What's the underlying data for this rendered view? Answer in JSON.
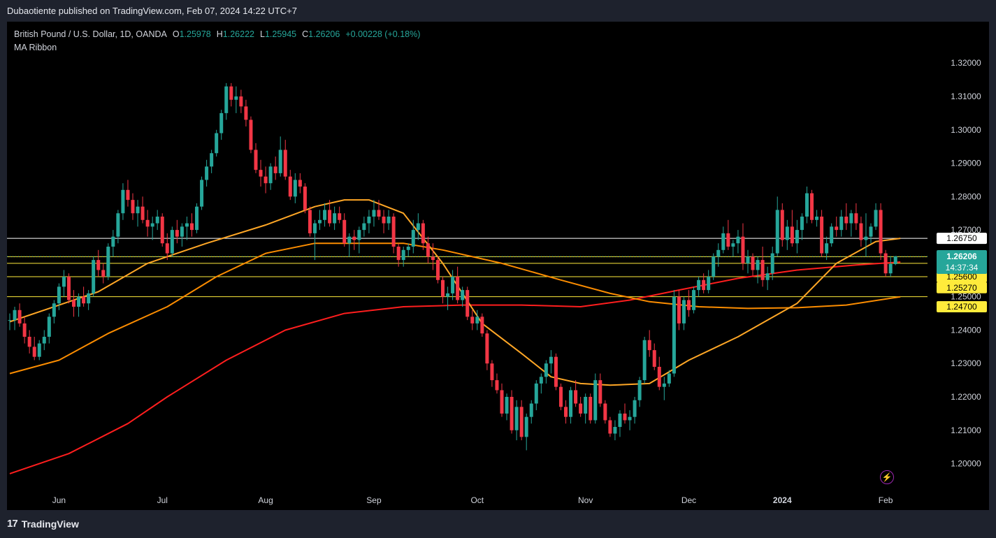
{
  "header": {
    "publish_line": "Dubaotiente published on TradingView.com, Feb 07, 2024 14:22 UTC+7"
  },
  "legend": {
    "symbol": "British Pound / U.S. Dollar, 1D, OANDA",
    "open_label": "O",
    "open": "1.25978",
    "high_label": "H",
    "high": "1.26222",
    "low_label": "L",
    "low": "1.25945",
    "close_label": "C",
    "close": "1.26206",
    "change": "+0.00228 (+0.18%)",
    "indicator": "MA Ribbon"
  },
  "footer": {
    "logo": "17",
    "brand": "TradingView"
  },
  "colors": {
    "up": "#26a69a",
    "down": "#f23645",
    "ma_fast": "#ffa726",
    "ma_mid": "#fb8c00",
    "ma_slow": "#ff1e1e",
    "hline_white": "#ffffff",
    "hline_yellow": "#ffeb3b",
    "background": "#000000"
  },
  "icons": {
    "alert": "lightning-icon"
  },
  "chart_data": {
    "type": "candlestick",
    "title": "British Pound / U.S. Dollar, 1D, OANDA",
    "ylim": [
      1.193,
      1.3324
    ],
    "y_ticks": [
      "1.32000",
      "1.31000",
      "1.30000",
      "1.29000",
      "1.28000",
      "1.27000",
      "1.26000",
      "1.25000",
      "1.24000",
      "1.23000",
      "1.22000",
      "1.21000",
      "1.20000"
    ],
    "x_ticks": [
      {
        "label": "Jun",
        "index": 10
      },
      {
        "label": "Jul",
        "index": 31
      },
      {
        "label": "Aug",
        "index": 52
      },
      {
        "label": "Sep",
        "index": 74
      },
      {
        "label": "Oct",
        "index": 95
      },
      {
        "label": "Nov",
        "index": 117
      },
      {
        "label": "Dec",
        "index": 138
      },
      {
        "label": "2024",
        "index": 157,
        "bold": true
      },
      {
        "label": "Feb",
        "index": 178
      }
    ],
    "last_index": 181,
    "candles": [
      [
        1.243,
        1.245,
        1.24,
        1.243
      ],
      [
        1.243,
        1.247,
        1.24,
        1.246
      ],
      [
        1.246,
        1.248,
        1.241,
        1.242
      ],
      [
        1.242,
        1.244,
        1.236,
        1.238
      ],
      [
        1.238,
        1.24,
        1.233,
        1.235
      ],
      [
        1.235,
        1.238,
        1.231,
        1.232
      ],
      [
        1.232,
        1.237,
        1.231,
        1.236
      ],
      [
        1.236,
        1.24,
        1.234,
        1.238
      ],
      [
        1.238,
        1.245,
        1.236,
        1.244
      ],
      [
        1.244,
        1.249,
        1.242,
        1.248
      ],
      [
        1.248,
        1.254,
        1.246,
        1.253
      ],
      [
        1.253,
        1.258,
        1.25,
        1.256
      ],
      [
        1.256,
        1.257,
        1.248,
        1.249
      ],
      [
        1.249,
        1.252,
        1.244,
        1.247
      ],
      [
        1.247,
        1.251,
        1.244,
        1.25
      ],
      [
        1.25,
        1.253,
        1.247,
        1.248
      ],
      [
        1.248,
        1.252,
        1.246,
        1.251
      ],
      [
        1.251,
        1.262,
        1.25,
        1.261
      ],
      [
        1.261,
        1.264,
        1.256,
        1.258
      ],
      [
        1.258,
        1.26,
        1.254,
        1.256
      ],
      [
        1.256,
        1.266,
        1.255,
        1.265
      ],
      [
        1.265,
        1.27,
        1.262,
        1.268
      ],
      [
        1.268,
        1.276,
        1.266,
        1.275
      ],
      [
        1.275,
        1.284,
        1.273,
        1.282
      ],
      [
        1.282,
        1.285,
        1.277,
        1.279
      ],
      [
        1.279,
        1.281,
        1.273,
        1.275
      ],
      [
        1.275,
        1.279,
        1.271,
        1.277
      ],
      [
        1.277,
        1.28,
        1.272,
        1.273
      ],
      [
        1.273,
        1.276,
        1.268,
        1.271
      ],
      [
        1.271,
        1.274,
        1.267,
        1.272
      ],
      [
        1.272,
        1.276,
        1.27,
        1.274
      ],
      [
        1.274,
        1.275,
        1.265,
        1.266
      ],
      [
        1.266,
        1.269,
        1.261,
        1.263
      ],
      [
        1.263,
        1.271,
        1.262,
        1.27
      ],
      [
        1.27,
        1.273,
        1.266,
        1.268
      ],
      [
        1.268,
        1.272,
        1.265,
        1.271
      ],
      [
        1.271,
        1.274,
        1.267,
        1.272
      ],
      [
        1.272,
        1.275,
        1.268,
        1.27
      ],
      [
        1.27,
        1.278,
        1.269,
        1.277
      ],
      [
        1.277,
        1.286,
        1.276,
        1.285
      ],
      [
        1.285,
        1.291,
        1.283,
        1.289
      ],
      [
        1.289,
        1.294,
        1.287,
        1.293
      ],
      [
        1.293,
        1.3,
        1.292,
        1.299
      ],
      [
        1.299,
        1.306,
        1.297,
        1.305
      ],
      [
        1.305,
        1.314,
        1.303,
        1.313
      ],
      [
        1.313,
        1.314,
        1.307,
        1.309
      ],
      [
        1.309,
        1.313,
        1.305,
        1.31
      ],
      [
        1.31,
        1.312,
        1.305,
        1.307
      ],
      [
        1.307,
        1.309,
        1.301,
        1.303
      ],
      [
        1.303,
        1.304,
        1.293,
        1.294
      ],
      [
        1.294,
        1.296,
        1.287,
        1.288
      ],
      [
        1.288,
        1.291,
        1.283,
        1.286
      ],
      [
        1.286,
        1.289,
        1.281,
        1.284
      ],
      [
        1.284,
        1.29,
        1.282,
        1.289
      ],
      [
        1.289,
        1.292,
        1.285,
        1.287
      ],
      [
        1.287,
        1.298,
        1.286,
        1.294
      ],
      [
        1.294,
        1.297,
        1.285,
        1.286
      ],
      [
        1.286,
        1.288,
        1.279,
        1.28
      ],
      [
        1.28,
        1.287,
        1.278,
        1.285
      ],
      [
        1.285,
        1.287,
        1.281,
        1.283
      ],
      [
        1.283,
        1.284,
        1.275,
        1.276
      ],
      [
        1.276,
        1.277,
        1.268,
        1.269
      ],
      [
        1.269,
        1.273,
        1.261,
        1.272
      ],
      [
        1.272,
        1.276,
        1.27,
        1.273
      ],
      [
        1.273,
        1.278,
        1.271,
        1.276
      ],
      [
        1.276,
        1.279,
        1.271,
        1.272
      ],
      [
        1.272,
        1.277,
        1.27,
        1.275
      ],
      [
        1.275,
        1.277,
        1.272,
        1.273
      ],
      [
        1.273,
        1.275,
        1.265,
        1.266
      ],
      [
        1.266,
        1.269,
        1.262,
        1.268
      ],
      [
        1.268,
        1.27,
        1.264,
        1.267
      ],
      [
        1.267,
        1.271,
        1.263,
        1.27
      ],
      [
        1.27,
        1.274,
        1.268,
        1.272
      ],
      [
        1.272,
        1.276,
        1.269,
        1.274
      ],
      [
        1.274,
        1.279,
        1.271,
        1.276
      ],
      [
        1.276,
        1.279,
        1.273,
        1.274
      ],
      [
        1.274,
        1.276,
        1.269,
        1.272
      ],
      [
        1.272,
        1.276,
        1.27,
        1.274
      ],
      [
        1.274,
        1.275,
        1.263,
        1.265
      ],
      [
        1.265,
        1.266,
        1.259,
        1.261
      ],
      [
        1.261,
        1.265,
        1.259,
        1.264
      ],
      [
        1.264,
        1.266,
        1.262,
        1.265
      ],
      [
        1.265,
        1.273,
        1.263,
        1.27
      ],
      [
        1.27,
        1.275,
        1.267,
        1.272
      ],
      [
        1.272,
        1.273,
        1.264,
        1.266
      ],
      [
        1.266,
        1.268,
        1.26,
        1.262
      ],
      [
        1.262,
        1.266,
        1.258,
        1.261
      ],
      [
        1.261,
        1.262,
        1.254,
        1.255
      ],
      [
        1.255,
        1.256,
        1.248,
        1.25
      ],
      [
        1.25,
        1.253,
        1.246,
        1.251
      ],
      [
        1.251,
        1.258,
        1.249,
        1.256
      ],
      [
        1.256,
        1.259,
        1.248,
        1.249
      ],
      [
        1.249,
        1.253,
        1.247,
        1.252
      ],
      [
        1.252,
        1.253,
        1.243,
        1.244
      ],
      [
        1.244,
        1.246,
        1.24,
        1.242
      ],
      [
        1.242,
        1.246,
        1.24,
        1.244
      ],
      [
        1.244,
        1.245,
        1.238,
        1.239
      ],
      [
        1.239,
        1.24,
        1.228,
        1.23
      ],
      [
        1.23,
        1.231,
        1.223,
        1.225
      ],
      [
        1.225,
        1.227,
        1.221,
        1.222
      ],
      [
        1.222,
        1.224,
        1.214,
        1.215
      ],
      [
        1.215,
        1.221,
        1.213,
        1.22
      ],
      [
        1.22,
        1.222,
        1.209,
        1.21
      ],
      [
        1.21,
        1.219,
        1.207,
        1.217
      ],
      [
        1.217,
        1.219,
        1.207,
        1.208
      ],
      [
        1.208,
        1.215,
        1.204,
        1.214
      ],
      [
        1.214,
        1.219,
        1.212,
        1.218
      ],
      [
        1.218,
        1.225,
        1.216,
        1.224
      ],
      [
        1.224,
        1.227,
        1.221,
        1.226
      ],
      [
        1.226,
        1.231,
        1.224,
        1.23
      ],
      [
        1.23,
        1.234,
        1.227,
        1.232
      ],
      [
        1.232,
        1.233,
        1.222,
        1.223
      ],
      [
        1.223,
        1.224,
        1.216,
        1.217
      ],
      [
        1.217,
        1.219,
        1.212,
        1.214
      ],
      [
        1.214,
        1.223,
        1.212,
        1.222
      ],
      [
        1.222,
        1.225,
        1.217,
        1.218
      ],
      [
        1.218,
        1.22,
        1.214,
        1.215
      ],
      [
        1.215,
        1.221,
        1.212,
        1.22
      ],
      [
        1.22,
        1.221,
        1.212,
        1.213
      ],
      [
        1.213,
        1.227,
        1.212,
        1.225
      ],
      [
        1.225,
        1.227,
        1.217,
        1.218
      ],
      [
        1.218,
        1.219,
        1.212,
        1.213
      ],
      [
        1.213,
        1.214,
        1.208,
        1.209
      ],
      [
        1.209,
        1.213,
        1.207,
        1.211
      ],
      [
        1.211,
        1.216,
        1.208,
        1.215
      ],
      [
        1.215,
        1.218,
        1.212,
        1.213
      ],
      [
        1.213,
        1.216,
        1.21,
        1.214
      ],
      [
        1.214,
        1.22,
        1.212,
        1.219
      ],
      [
        1.219,
        1.226,
        1.217,
        1.225
      ],
      [
        1.225,
        1.238,
        1.224,
        1.237
      ],
      [
        1.237,
        1.24,
        1.232,
        1.234
      ],
      [
        1.234,
        1.236,
        1.228,
        1.229
      ],
      [
        1.229,
        1.232,
        1.222,
        1.223
      ],
      [
        1.223,
        1.226,
        1.219,
        1.224
      ],
      [
        1.224,
        1.228,
        1.223,
        1.227
      ],
      [
        1.227,
        1.252,
        1.226,
        1.25
      ],
      [
        1.25,
        1.252,
        1.24,
        1.242
      ],
      [
        1.242,
        1.25,
        1.24,
        1.249
      ],
      [
        1.249,
        1.252,
        1.244,
        1.246
      ],
      [
        1.246,
        1.253,
        1.245,
        1.252
      ],
      [
        1.252,
        1.256,
        1.25,
        1.255
      ],
      [
        1.255,
        1.257,
        1.251,
        1.252
      ],
      [
        1.252,
        1.258,
        1.251,
        1.256
      ],
      [
        1.256,
        1.263,
        1.255,
        1.262
      ],
      [
        1.262,
        1.266,
        1.259,
        1.264
      ],
      [
        1.264,
        1.271,
        1.263,
        1.269
      ],
      [
        1.269,
        1.273,
        1.264,
        1.265
      ],
      [
        1.265,
        1.267,
        1.262,
        1.266
      ],
      [
        1.266,
        1.27,
        1.263,
        1.268
      ],
      [
        1.268,
        1.272,
        1.258,
        1.26
      ],
      [
        1.26,
        1.264,
        1.257,
        1.262
      ],
      [
        1.262,
        1.263,
        1.256,
        1.258
      ],
      [
        1.258,
        1.262,
        1.254,
        1.261
      ],
      [
        1.261,
        1.265,
        1.253,
        1.255
      ],
      [
        1.255,
        1.259,
        1.252,
        1.257
      ],
      [
        1.257,
        1.265,
        1.255,
        1.263
      ],
      [
        1.263,
        1.28,
        1.262,
        1.276
      ],
      [
        1.276,
        1.278,
        1.265,
        1.267
      ],
      [
        1.267,
        1.273,
        1.264,
        1.271
      ],
      [
        1.271,
        1.276,
        1.265,
        1.266
      ],
      [
        1.266,
        1.273,
        1.263,
        1.27
      ],
      [
        1.27,
        1.275,
        1.267,
        1.274
      ],
      [
        1.274,
        1.283,
        1.272,
        1.281
      ],
      [
        1.281,
        1.282,
        1.272,
        1.273
      ],
      [
        1.273,
        1.276,
        1.271,
        1.274
      ],
      [
        1.274,
        1.276,
        1.262,
        1.263
      ],
      [
        1.263,
        1.268,
        1.261,
        1.266
      ],
      [
        1.266,
        1.272,
        1.265,
        1.271
      ],
      [
        1.271,
        1.274,
        1.268,
        1.27
      ],
      [
        1.27,
        1.276,
        1.268,
        1.274
      ],
      [
        1.274,
        1.278,
        1.27,
        1.272
      ],
      [
        1.272,
        1.276,
        1.268,
        1.275
      ],
      [
        1.275,
        1.278,
        1.27,
        1.272
      ],
      [
        1.272,
        1.274,
        1.265,
        1.267
      ],
      [
        1.267,
        1.275,
        1.262,
        1.268
      ],
      [
        1.268,
        1.272,
        1.266,
        1.271
      ],
      [
        1.271,
        1.278,
        1.27,
        1.276
      ],
      [
        1.276,
        1.278,
        1.261,
        1.263
      ],
      [
        1.263,
        1.264,
        1.256,
        1.257
      ],
      [
        1.257,
        1.262,
        1.256,
        1.2598
      ],
      [
        1.25978,
        1.26222,
        1.25945,
        1.26206
      ]
    ],
    "ma_fast": [
      [
        0,
        1.2425
      ],
      [
        8,
        1.2465
      ],
      [
        18,
        1.2515
      ],
      [
        28,
        1.26
      ],
      [
        40,
        1.266
      ],
      [
        52,
        1.2715
      ],
      [
        62,
        1.277
      ],
      [
        68,
        1.279
      ],
      [
        73,
        1.279
      ],
      [
        80,
        1.275
      ],
      [
        88,
        1.26
      ],
      [
        96,
        1.242
      ],
      [
        104,
        1.233
      ],
      [
        110,
        1.226
      ],
      [
        116,
        1.224
      ],
      [
        122,
        1.2235
      ],
      [
        130,
        1.224
      ],
      [
        138,
        1.231
      ],
      [
        148,
        1.238
      ],
      [
        160,
        1.248
      ],
      [
        168,
        1.26
      ],
      [
        176,
        1.2665
      ],
      [
        181,
        1.2675
      ]
    ],
    "ma_mid": [
      [
        0,
        1.227
      ],
      [
        10,
        1.231
      ],
      [
        20,
        1.239
      ],
      [
        32,
        1.247
      ],
      [
        42,
        1.256
      ],
      [
        52,
        1.263
      ],
      [
        62,
        1.266
      ],
      [
        72,
        1.266
      ],
      [
        80,
        1.266
      ],
      [
        88,
        1.264
      ],
      [
        100,
        1.26
      ],
      [
        112,
        1.255
      ],
      [
        122,
        1.251
      ],
      [
        130,
        1.2485
      ],
      [
        140,
        1.247
      ],
      [
        150,
        1.2465
      ],
      [
        160,
        1.2467
      ],
      [
        170,
        1.2475
      ],
      [
        181,
        1.25
      ]
    ],
    "ma_slow": [
      [
        0,
        1.197
      ],
      [
        12,
        1.203
      ],
      [
        24,
        1.212
      ],
      [
        32,
        1.22
      ],
      [
        44,
        1.231
      ],
      [
        56,
        1.24
      ],
      [
        68,
        1.245
      ],
      [
        80,
        1.247
      ],
      [
        92,
        1.2475
      ],
      [
        104,
        1.2475
      ],
      [
        116,
        1.247
      ],
      [
        126,
        1.249
      ],
      [
        136,
        1.252
      ],
      [
        148,
        1.2555
      ],
      [
        160,
        1.258
      ],
      [
        172,
        1.2595
      ],
      [
        181,
        1.2604
      ]
    ],
    "horizontal_lines": [
      {
        "value": 1.2675,
        "label": "1.26750",
        "color": "#ffffff",
        "text_color": "#000000"
      },
      {
        "value": 1.262,
        "label": null,
        "color": "#ffeb3b"
      },
      {
        "value": 1.26,
        "label": "1.26000",
        "color": "#ffeb3b",
        "text_color": "#000000"
      },
      {
        "value": 1.256,
        "label": "1.25600",
        "color": "#ffeb3b",
        "text_color": "#000000"
      },
      {
        "value": 1.25,
        "label": null,
        "color": "#ffeb3b"
      }
    ],
    "extra_labels": [
      {
        "value": 1.2527,
        "label": "1.25270",
        "bg": "#ffeb3b",
        "text_color": "#000000"
      },
      {
        "value": 1.247,
        "label": "1.24700",
        "bg": "#ffeb3b",
        "text_color": "#000000"
      }
    ],
    "current_price": {
      "value": 1.26206,
      "label": "1.26206",
      "countdown": "14:37:34",
      "bg": "#26a69a"
    }
  }
}
